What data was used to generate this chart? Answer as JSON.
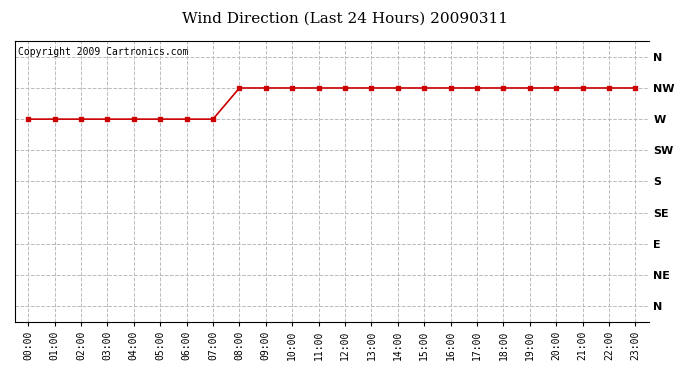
{
  "title": "Wind Direction (Last 24 Hours) 20090311",
  "copyright": "Copyright 2009 Cartronics.com",
  "x_labels": [
    "00:00",
    "01:00",
    "02:00",
    "03:00",
    "04:00",
    "05:00",
    "06:00",
    "07:00",
    "08:00",
    "09:00",
    "10:00",
    "11:00",
    "12:00",
    "13:00",
    "14:00",
    "15:00",
    "16:00",
    "17:00",
    "18:00",
    "19:00",
    "20:00",
    "21:00",
    "22:00",
    "23:00"
  ],
  "y_labels_top_to_bottom": [
    "N",
    "NW",
    "W",
    "SW",
    "S",
    "SE",
    "E",
    "NE",
    "N"
  ],
  "wind_data_x": [
    0,
    1,
    2,
    3,
    4,
    5,
    6,
    7,
    8,
    9,
    10,
    11,
    12,
    13,
    14,
    15,
    16,
    17,
    18,
    19,
    20,
    21,
    22,
    23
  ],
  "wind_data_y": [
    6,
    6,
    6,
    6,
    6,
    6,
    6,
    6,
    7,
    7,
    7,
    7,
    7,
    7,
    7,
    7,
    7,
    7,
    7,
    7,
    7,
    7,
    7,
    7
  ],
  "line_color": "#cc0000",
  "marker": "s",
  "marker_size": 3,
  "line_width": 1.2,
  "bg_color": "#ffffff",
  "grid_color": "#bbbbbb",
  "title_fontsize": 11,
  "copyright_fontsize": 7,
  "tick_fontsize": 7,
  "ylabel_fontsize": 8
}
